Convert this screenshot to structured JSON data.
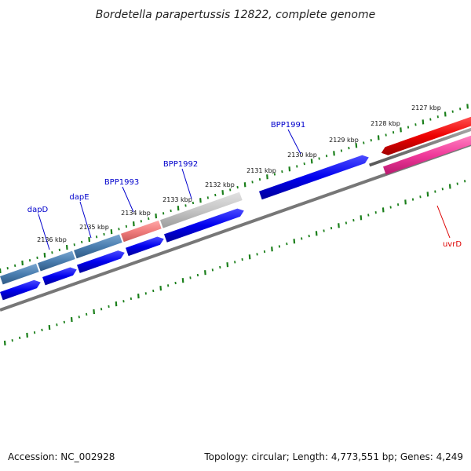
{
  "title": "Bordetella parapertussis 12822, complete genome",
  "footer": {
    "accession": "Accession: NC_002928",
    "summary": "Topology: circular; Length: 4,773,551 bp; Genes: 4,249"
  },
  "colors": {
    "tick": "#1a7f1a",
    "backbone": "#777777",
    "strand_forward": "#0000ee",
    "strand_reverse": "#e00000",
    "label_blue": "#0000cc",
    "label_red": "#dd0000",
    "steel_blue": "#4a7eb0",
    "salmon": "#f07d7d",
    "light_gray": "#c6c6c6",
    "pink": "#f0399a",
    "dark_gray": "#7a7a7a"
  },
  "ticks": [
    {
      "label": "2127 kbp"
    },
    {
      "label": "2128 kbp"
    },
    {
      "label": "2129 kbp"
    },
    {
      "label": "2130 kbp"
    },
    {
      "label": "2131 kbp"
    },
    {
      "label": "2132 kbp"
    },
    {
      "label": "2133 kbp"
    },
    {
      "label": "2134 kbp"
    },
    {
      "label": "2135 kbp"
    },
    {
      "label": "2136 kbp"
    }
  ],
  "gene_labels": [
    {
      "label": "BPP1991",
      "color": "blue"
    },
    {
      "label": "BPP1992",
      "color": "blue"
    },
    {
      "label": "BPP1993",
      "color": "blue"
    },
    {
      "label": "dapE",
      "color": "blue"
    },
    {
      "label": "dapD",
      "color": "blue"
    },
    {
      "label": "uvrD",
      "color": "red"
    }
  ]
}
